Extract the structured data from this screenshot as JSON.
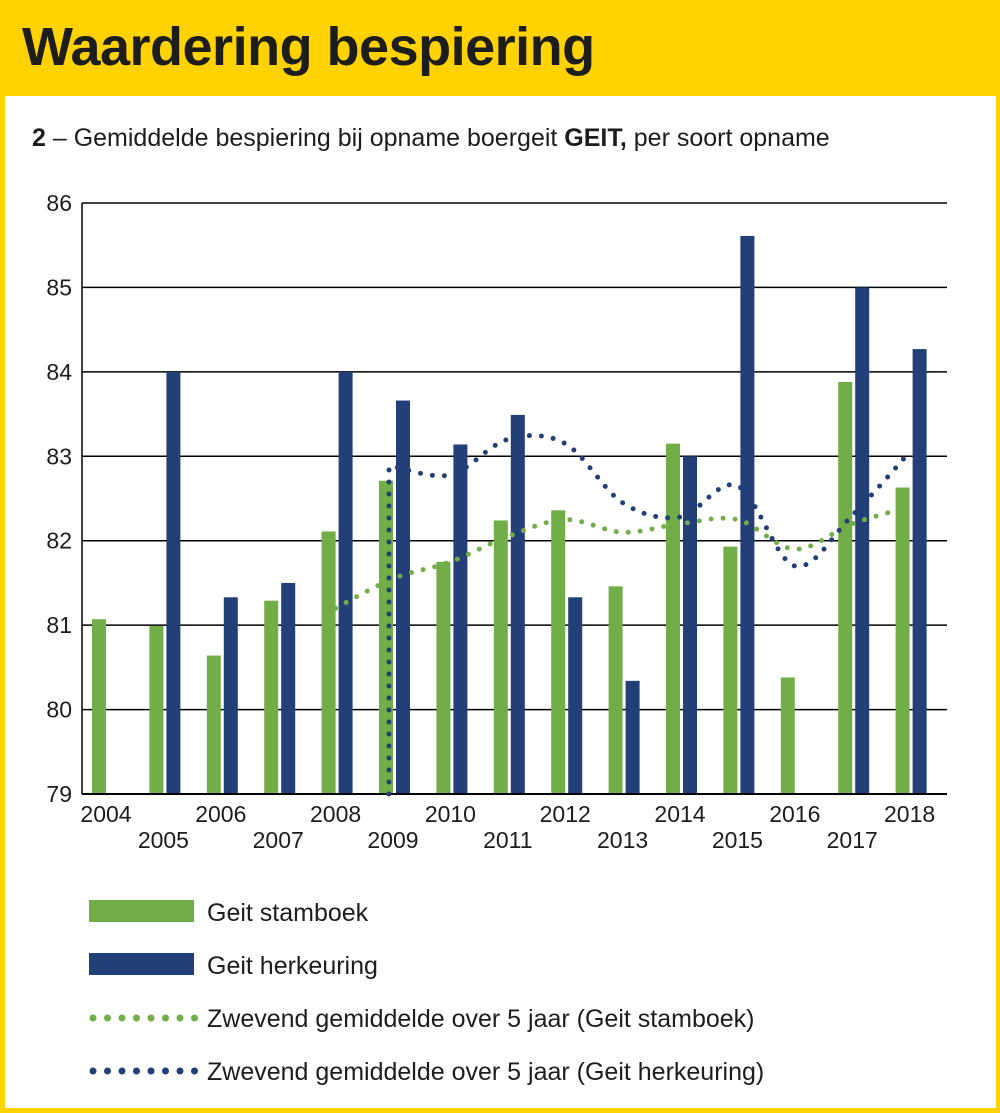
{
  "page": {
    "title": "Waardering bespiering",
    "subtitle_number": "2",
    "subtitle_prefix": " – Gemiddelde bespiering bij opname boergeit ",
    "subtitle_bold": "GEIT,",
    "subtitle_suffix": " per soort opname"
  },
  "colors": {
    "background": "#FFD200",
    "panel": "#FFFFFF",
    "stamboek": "#72AE48",
    "herkeuring": "#233F77",
    "grid": "#000000"
  },
  "chart_data": {
    "type": "bar",
    "title": "Waardering bespiering",
    "subtitle": "2 – Gemiddelde bespiering bij opname boergeit GEIT, per soort opname",
    "categories": [
      "2004",
      "2005",
      "2006",
      "2007",
      "2008",
      "2009",
      "2010",
      "2011",
      "2012",
      "2013",
      "2014",
      "2015",
      "2016",
      "2017",
      "2018"
    ],
    "ylim": [
      79,
      86
    ],
    "yticks": [
      79,
      80,
      81,
      82,
      83,
      84,
      85,
      86
    ],
    "grid": true,
    "legend_position": "bottom",
    "series": [
      {
        "name": "Geit stamboek",
        "kind": "bar",
        "color": "#72AE48",
        "values": [
          81.07,
          80.99,
          80.64,
          81.29,
          82.11,
          82.71,
          81.75,
          82.24,
          82.36,
          81.46,
          83.15,
          81.93,
          80.38,
          83.88,
          82.63
        ]
      },
      {
        "name": "Geit herkeuring",
        "kind": "bar",
        "color": "#233F77",
        "values": [
          null,
          84.0,
          81.33,
          81.5,
          84.0,
          83.66,
          83.14,
          83.49,
          81.33,
          80.34,
          83.0,
          85.61,
          null,
          85.0,
          84.27
        ]
      },
      {
        "name": "Zwevend gemiddelde over 5 jaar (Geit stamboek)",
        "kind": "line",
        "style": "dotted",
        "color": "#72AE48",
        "x": [
          2008,
          2009,
          2010,
          2011,
          2012,
          2013,
          2014,
          2015,
          2016,
          2017,
          2018
        ],
        "values": [
          81.2,
          81.55,
          81.75,
          82.05,
          82.25,
          82.1,
          82.2,
          82.25,
          81.9,
          82.2,
          82.4
        ]
      },
      {
        "name": "Zwevend gemiddelde over 5 jaar (Geit herkeuring)",
        "kind": "line",
        "style": "dotted",
        "color": "#233F77",
        "x": [
          2009,
          2010,
          2011,
          2012,
          2013,
          2014,
          2015,
          2016,
          2017,
          2018
        ],
        "values": [
          82.88,
          82.78,
          83.2,
          83.15,
          82.45,
          82.28,
          82.65,
          81.7,
          82.3,
          83.05
        ]
      }
    ]
  }
}
